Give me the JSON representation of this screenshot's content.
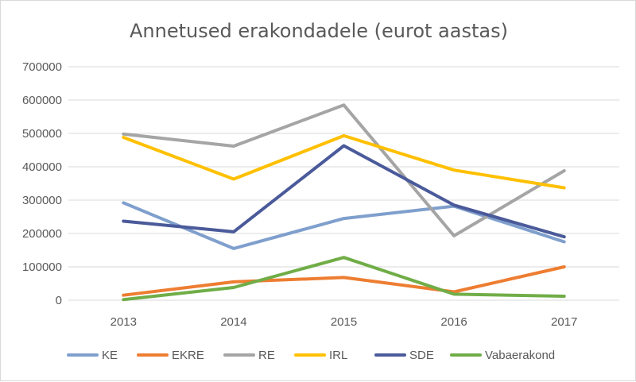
{
  "chart_data": {
    "type": "line",
    "title": "Annetused erakondadele (eurot aastas)",
    "xlabel": "",
    "ylabel": "",
    "categories": [
      "2013",
      "2014",
      "2015",
      "2016",
      "2017"
    ],
    "ylim": [
      0,
      700000
    ],
    "yticks": [
      0,
      100000,
      200000,
      300000,
      400000,
      500000,
      600000,
      700000
    ],
    "ytick_labels": [
      "0",
      "100000",
      "200000",
      "300000",
      "400000",
      "500000",
      "600000",
      "700000"
    ],
    "grid": true,
    "legend_position": "bottom",
    "series": [
      {
        "name": "KE",
        "color": "#7f9fcd",
        "values": [
          292000,
          155000,
          245000,
          282000,
          175000
        ]
      },
      {
        "name": "EKRE",
        "color": "#ed7d31",
        "values": [
          15000,
          55000,
          68000,
          25000,
          100000
        ]
      },
      {
        "name": "RE",
        "color": "#a5a5a5",
        "values": [
          498000,
          462000,
          585000,
          193000,
          388000
        ]
      },
      {
        "name": "IRL",
        "color": "#ffc000",
        "values": [
          488000,
          363000,
          493000,
          390000,
          337000
        ]
      },
      {
        "name": "SDE",
        "color": "#4a5a9a",
        "values": [
          237000,
          205000,
          463000,
          285000,
          190000
        ]
      },
      {
        "name": "Vabaerakond",
        "color": "#70ad47",
        "values": [
          2000,
          38000,
          128000,
          18000,
          12000
        ]
      }
    ]
  }
}
